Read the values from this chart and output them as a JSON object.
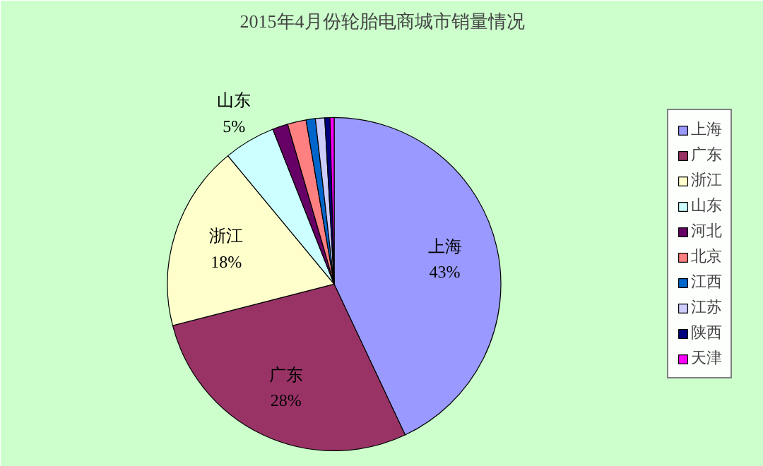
{
  "chart_data": {
    "type": "pie",
    "title": "2015年4月份轮胎电商城市销量情况",
    "categories": [
      "上海",
      "广东",
      "浙江",
      "山东",
      "河北",
      "北京",
      "江西",
      "江苏",
      "陕西",
      "天津"
    ],
    "values": [
      43,
      28,
      18,
      5,
      1.5,
      1.8,
      0.9,
      0.9,
      0.5,
      0.4
    ],
    "colors": [
      "#9999ff",
      "#993366",
      "#ffffcc",
      "#ccffff",
      "#660066",
      "#ff8080",
      "#0066cc",
      "#ccccff",
      "#000080",
      "#ff00ff"
    ],
    "value_labels": [
      "43%",
      "28%",
      "18%",
      "5%",
      null,
      null,
      null,
      null,
      null,
      null
    ],
    "legend": "right"
  }
}
